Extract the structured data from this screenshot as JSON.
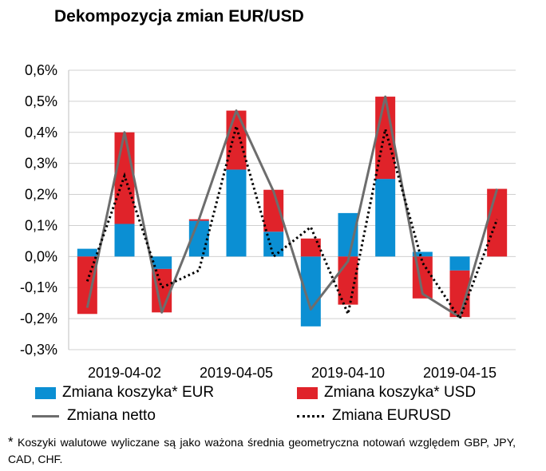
{
  "title": "Dekompozycja zmian EUR/USD",
  "colors": {
    "eur": "#0b8fd3",
    "usd": "#e0232a",
    "netto": "#6d6d6d",
    "eurusd": "#000000",
    "grid": "#d0d0d0"
  },
  "legend": {
    "eur": "Zmiana koszyka* EUR",
    "usd": "Zmiana koszyka* USD",
    "netto": "Zmiana netto",
    "eurusd": "Zmiana EURUSD"
  },
  "footnote": {
    "star": "*",
    "text": "Koszyki walutowe wyliczane są jako ważona średnia geometryczna notowań względem GBP, JPY, CAD, CHF."
  },
  "chart_data": {
    "type": "bar",
    "stacked": true,
    "x_tick_labels": [
      "2019-04-02",
      "2019-04-05",
      "2019-04-10",
      "2019-04-15"
    ],
    "x_tick_positions": [
      1,
      4,
      7,
      10
    ],
    "ylim": [
      -0.3,
      0.6
    ],
    "y_ticks": [
      -0.3,
      -0.2,
      -0.1,
      0.0,
      0.1,
      0.2,
      0.3,
      0.4,
      0.5,
      0.6
    ],
    "y_tick_labels": [
      "-0,3%",
      "-0,2%",
      "-0,1%",
      "0,0%",
      "0,1%",
      "0,2%",
      "0,3%",
      "0,4%",
      "0,5%",
      "0,6%"
    ],
    "grid": "horizontal",
    "series": [
      {
        "name": "Zmiana koszyka* EUR",
        "kind": "bar",
        "values": [
          0.025,
          0.105,
          -0.04,
          0.115,
          0.28,
          0.08,
          -0.225,
          0.14,
          0.25,
          0.015,
          -0.045,
          0.0
        ]
      },
      {
        "name": "Zmiana koszyka* USD",
        "kind": "bar",
        "values": [
          -0.185,
          0.295,
          -0.14,
          0.005,
          0.19,
          0.135,
          0.058,
          -0.155,
          0.265,
          -0.135,
          -0.15,
          0.218
        ]
      },
      {
        "name": "Zmiana netto",
        "kind": "line",
        "values": [
          -0.165,
          0.4,
          -0.18,
          0.12,
          0.47,
          0.21,
          -0.17,
          -0.015,
          0.515,
          -0.12,
          -0.195,
          0.218
        ]
      },
      {
        "name": "Zmiana EURUSD",
        "kind": "line",
        "dashed": true,
        "values": [
          -0.08,
          0.26,
          -0.1,
          -0.045,
          0.42,
          0.0,
          0.095,
          -0.185,
          0.41,
          -0.02,
          -0.2,
          0.12
        ]
      }
    ]
  }
}
